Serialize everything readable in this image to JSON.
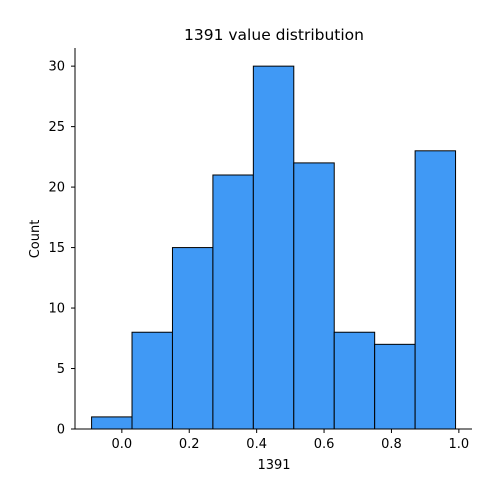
{
  "chart_data": {
    "type": "bar",
    "subtype": "histogram",
    "title": "1391 value distribution",
    "xlabel": "1391",
    "ylabel": "Count",
    "bin_edges": [
      -0.0898,
      0.0302,
      0.1502,
      0.2702,
      0.3902,
      0.5102,
      0.6302,
      0.7502,
      0.8702,
      0.9902
    ],
    "values": [
      1,
      8,
      15,
      21,
      30,
      22,
      8,
      7,
      23
    ],
    "xlim": [
      -0.139,
      1.039
    ],
    "ylim": [
      0,
      31.5
    ],
    "xticks": [
      "0.0",
      "0.2",
      "0.4",
      "0.6",
      "0.8",
      "1.0"
    ],
    "xtick_values": [
      0.0,
      0.2,
      0.4,
      0.6,
      0.8,
      1.0
    ],
    "yticks": [
      "0",
      "5",
      "10",
      "15",
      "20",
      "25",
      "30"
    ],
    "ytick_values": [
      0,
      5,
      10,
      15,
      20,
      25,
      30
    ],
    "grid": false,
    "legend": "none",
    "colors": {
      "bar_fill": "#4099f5",
      "bar_edge": "#000000",
      "axis": "#000000"
    }
  }
}
